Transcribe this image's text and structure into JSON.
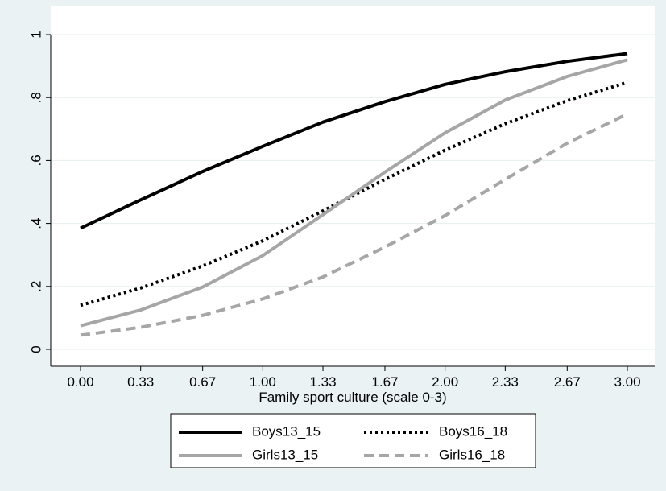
{
  "chart_data": {
    "type": "line",
    "title": "",
    "xlabel": "Family sport culture (scale 0-3)",
    "ylabel": "",
    "x": [
      0.0,
      0.33,
      0.67,
      1.0,
      1.33,
      1.67,
      2.0,
      2.33,
      2.67,
      3.0
    ],
    "x_tick_labels": [
      "0.00",
      "0.33",
      "0.67",
      "1.00",
      "1.33",
      "1.67",
      "2.00",
      "2.33",
      "2.67",
      "3.00"
    ],
    "y_ticks": [
      0,
      0.2,
      0.4,
      0.6,
      0.8,
      1
    ],
    "y_tick_labels": [
      "0",
      ".2",
      ".4",
      ".6",
      ".8",
      "1"
    ],
    "ylim": [
      0,
      1
    ],
    "grid": "horizontal",
    "legend_position": "bottom",
    "series": [
      {
        "name": "Boys13_15",
        "color": "#000000",
        "style": "solid",
        "values": [
          0.385,
          0.475,
          0.565,
          0.645,
          0.722,
          0.787,
          0.842,
          0.882,
          0.915,
          0.94
        ]
      },
      {
        "name": "Boys16_18",
        "color": "#000000",
        "style": "dotted",
        "values": [
          0.14,
          0.195,
          0.265,
          0.345,
          0.44,
          0.54,
          0.633,
          0.717,
          0.79,
          0.848
        ]
      },
      {
        "name": "Girls13_15",
        "color": "#a6a6a6",
        "style": "solid",
        "values": [
          0.075,
          0.125,
          0.198,
          0.298,
          0.428,
          0.563,
          0.688,
          0.792,
          0.867,
          0.92
        ]
      },
      {
        "name": "Girls16_18",
        "color": "#a6a6a6",
        "style": "dashed",
        "values": [
          0.045,
          0.07,
          0.108,
          0.16,
          0.23,
          0.325,
          0.425,
          0.54,
          0.655,
          0.748
        ]
      }
    ],
    "legend_order": [
      "Boys13_15",
      "Boys16_18",
      "Girls13_15",
      "Girls16_18"
    ]
  }
}
